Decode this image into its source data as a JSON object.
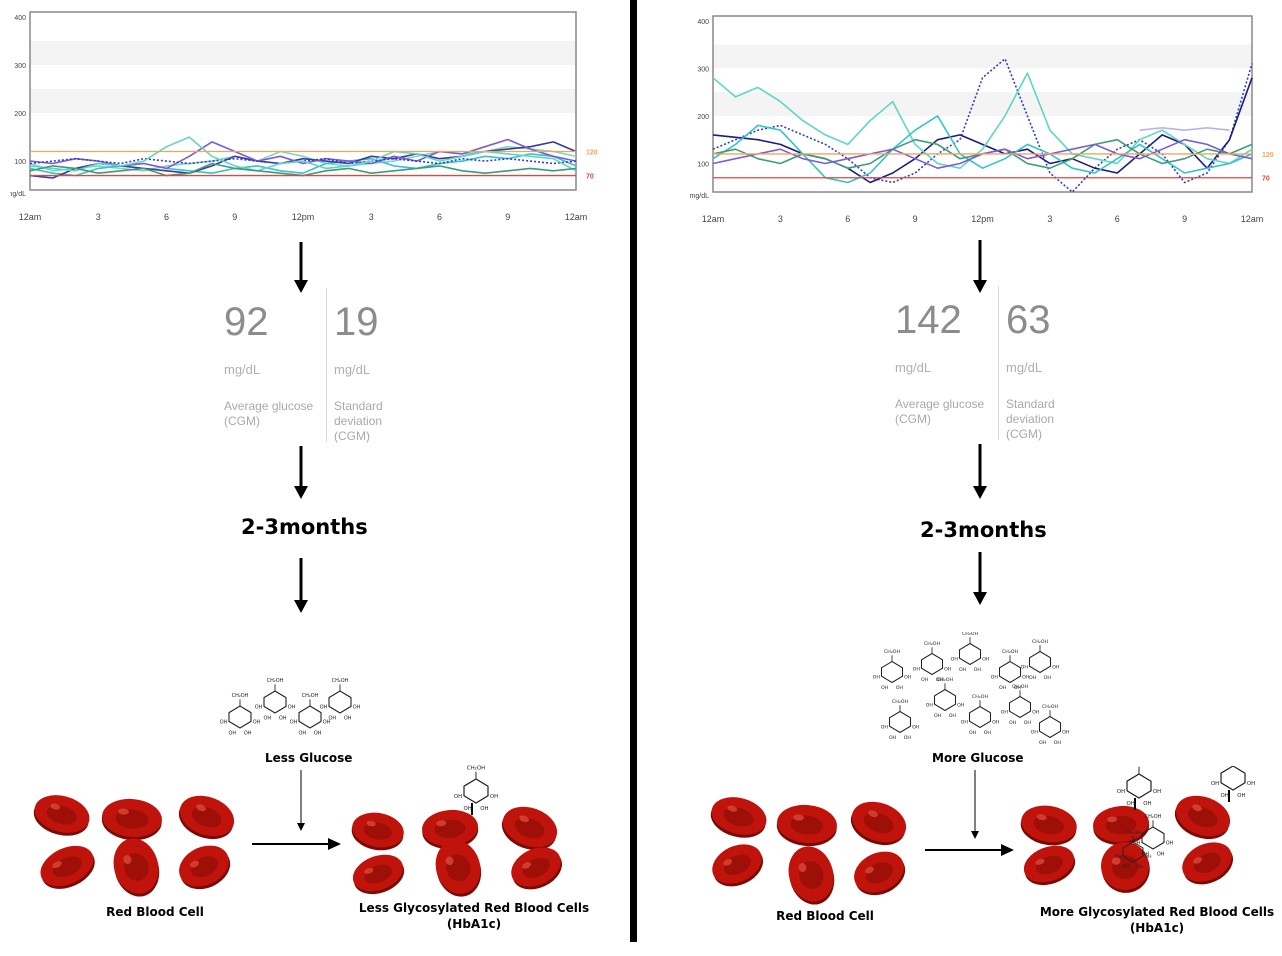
{
  "charts": {
    "left": {
      "type": "line",
      "y_unit_label": "mg/dL",
      "y_ticks": [
        100,
        200,
        300,
        400
      ],
      "ylim": [
        40,
        410
      ],
      "x_ticks": [
        "12am",
        "3",
        "6",
        "9",
        "12pm",
        "3",
        "6",
        "9",
        "12am"
      ],
      "bands": [
        [
          200,
          250
        ],
        [
          300,
          350
        ]
      ],
      "thresholds": [
        {
          "value": 120,
          "label": "120",
          "color": "#f4a35b"
        },
        {
          "value": 70,
          "label": "70",
          "color": "#e0463a"
        }
      ],
      "series": [
        {
          "color": "#7fd6c6",
          "dash": false,
          "y": [
            95,
            80,
            85,
            90,
            85,
            80,
            90,
            95,
            100,
            110,
            100,
            120,
            110,
            95,
            90,
            95,
            100,
            110,
            120,
            115,
            120,
            130,
            125,
            120,
            110
          ]
        },
        {
          "color": "#35c3c8",
          "dash": false,
          "y": [
            85,
            75,
            70,
            85,
            90,
            95,
            85,
            80,
            75,
            85,
            90,
            80,
            75,
            95,
            100,
            105,
            90,
            85,
            95,
            100,
            110,
            105,
            115,
            110,
            90
          ]
        },
        {
          "color": "#3a3a9a",
          "dash": false,
          "y": [
            70,
            65,
            85,
            95,
            90,
            85,
            80,
            75,
            90,
            110,
            100,
            95,
            105,
            100,
            95,
            110,
            105,
            115,
            105,
            110,
            120,
            125,
            130,
            140,
            120
          ]
        },
        {
          "color": "#7d5bd6",
          "dash": false,
          "y": [
            100,
            95,
            105,
            100,
            90,
            95,
            85,
            110,
            140,
            120,
            100,
            110,
            95,
            105,
            100,
            95,
            110,
            100,
            120,
            115,
            130,
            145,
            125,
            110,
            100
          ]
        },
        {
          "color": "#2b3fc9",
          "dash": true,
          "y": [
            95,
            100,
            105,
            100,
            95,
            105,
            100,
            95,
            100,
            105,
            100,
            95,
            100,
            105,
            95,
            100,
            105,
            100,
            95,
            105,
            100,
            105,
            100,
            95,
            100
          ]
        },
        {
          "color": "#5ed7c3",
          "dash": false,
          "y": [
            90,
            85,
            80,
            95,
            90,
            100,
            130,
            150,
            110,
            90,
            80,
            95,
            100,
            85,
            90,
            100,
            120,
            115,
            100,
            110,
            120,
            115,
            110,
            105,
            80
          ]
        },
        {
          "color": "#3c9c7a",
          "dash": false,
          "y": [
            80,
            90,
            85,
            75,
            80,
            85,
            70,
            75,
            95,
            85,
            80,
            75,
            70,
            80,
            85,
            75,
            80,
            85,
            90,
            80,
            75,
            80,
            85,
            80,
            85
          ]
        }
      ]
    },
    "right": {
      "type": "line",
      "y_unit_label": "mg/dL",
      "y_ticks": [
        100,
        200,
        300,
        400
      ],
      "ylim": [
        40,
        410
      ],
      "x_ticks": [
        "12am",
        "3",
        "6",
        "9",
        "12pm",
        "3",
        "6",
        "9",
        "12am"
      ],
      "bands": [
        [
          200,
          250
        ],
        [
          300,
          350
        ]
      ],
      "thresholds": [
        {
          "value": 120,
          "label": "120",
          "color": "#f4a35b"
        },
        {
          "value": 70,
          "label": "70",
          "color": "#e0463a"
        }
      ],
      "series": [
        {
          "color": "#2b3fc9",
          "dash": true,
          "y": [
            130,
            150,
            170,
            180,
            160,
            140,
            110,
            70,
            60,
            80,
            120,
            150,
            280,
            320,
            200,
            80,
            40,
            90,
            130,
            150,
            120,
            60,
            80,
            150,
            310
          ]
        },
        {
          "color": "#1d1d7a",
          "dash": false,
          "y": [
            160,
            155,
            150,
            140,
            120,
            110,
            90,
            60,
            80,
            110,
            150,
            160,
            140,
            120,
            130,
            100,
            110,
            90,
            80,
            120,
            160,
            140,
            90,
            150,
            280
          ]
        },
        {
          "color": "#5ed7c3",
          "dash": false,
          "y": [
            280,
            240,
            260,
            230,
            190,
            160,
            140,
            190,
            230,
            140,
            100,
            90,
            130,
            200,
            290,
            170,
            120,
            110,
            100,
            150,
            170,
            140,
            110,
            100,
            130
          ]
        },
        {
          "color": "#35c3c8",
          "dash": false,
          "y": [
            110,
            140,
            180,
            170,
            120,
            70,
            60,
            80,
            130,
            170,
            200,
            120,
            90,
            110,
            140,
            120,
            90,
            80,
            110,
            140,
            110,
            80,
            90,
            100,
            120
          ]
        },
        {
          "color": "#3c9c7a",
          "dash": false,
          "y": [
            120,
            130,
            110,
            100,
            120,
            110,
            90,
            100,
            130,
            150,
            140,
            110,
            120,
            130,
            100,
            90,
            110,
            140,
            150,
            120,
            100,
            110,
            130,
            120,
            140
          ]
        },
        {
          "color": "#7d5bd6",
          "dash": false,
          "y": [
            100,
            110,
            120,
            130,
            110,
            100,
            110,
            120,
            130,
            110,
            90,
            100,
            120,
            130,
            110,
            120,
            130,
            140,
            120,
            110,
            130,
            150,
            140,
            120,
            110
          ]
        },
        {
          "color": "#b8b4e6",
          "dash": false,
          "y": [
            null,
            null,
            null,
            null,
            null,
            null,
            null,
            null,
            null,
            null,
            null,
            null,
            null,
            null,
            null,
            null,
            null,
            null,
            null,
            170,
            175,
            170,
            175,
            170,
            null
          ]
        }
      ]
    }
  },
  "stats": {
    "left": {
      "avg_value": "92",
      "avg_unit": "mg/dL",
      "avg_label_1": "Average glucose",
      "avg_label_2": "(CGM)",
      "sd_value": "19",
      "sd_unit": "mg/dL",
      "sd_label_1": "Standard",
      "sd_label_2": "deviation",
      "sd_label_3": "(CGM)"
    },
    "right": {
      "avg_value": "142",
      "avg_unit": "mg/dL",
      "avg_label_1": "Average glucose",
      "avg_label_2": "(CGM)",
      "sd_value": "63",
      "sd_unit": "mg/dL",
      "sd_label_1": "Standard",
      "sd_label_2": "deviation",
      "sd_label_3": "(CGM)"
    }
  },
  "duration": {
    "left": "2-3months",
    "right": "2-3months"
  },
  "glucose": {
    "left_caption": "Less Glucose",
    "right_caption": "More Glucose",
    "molecule_labels": {
      "ch2oh": "CH₂OH",
      "oh": "OH"
    }
  },
  "cells": {
    "left_source_caption": "Red Blood Cell",
    "left_result_caption_1": "Less Glycosylated Red Blood Cells",
    "left_result_caption_2": "(HbA1c)",
    "right_source_caption": "Red Blood Cell",
    "right_result_caption_1": "More Glycosylated Red Blood Cells",
    "right_result_caption_2": "(HbA1c)"
  },
  "colors": {
    "cell_red": "#c0130b",
    "cell_dark": "#7a0a05",
    "band": "#f4f4f4",
    "text_grey": "#8c8c8c"
  }
}
